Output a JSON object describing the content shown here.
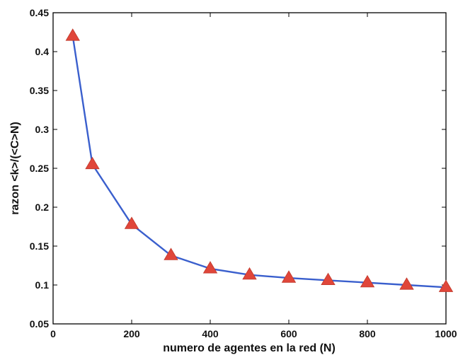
{
  "chart_data": {
    "type": "line",
    "title": "",
    "xlabel": "numero de agentes en la red (N)",
    "ylabel": "razon <k>/(<C>N)",
    "xlim": [
      0,
      1000
    ],
    "ylim": [
      0.05,
      0.45
    ],
    "xticks": [
      0,
      200,
      400,
      600,
      800,
      1000
    ],
    "yticks": [
      0.05,
      0.1,
      0.15,
      0.2,
      0.25,
      0.3,
      0.35,
      0.4,
      0.45
    ],
    "xtick_labels": [
      "0",
      "200",
      "400",
      "600",
      "800",
      "1000"
    ],
    "ytick_labels": [
      "0.05",
      "0.1",
      "0.15",
      "0.2",
      "0.25",
      "0.3",
      "0.35",
      "0.4",
      "0.45"
    ],
    "grid": false,
    "series": [
      {
        "x": [
          50,
          100,
          200,
          300,
          400,
          500,
          600,
          700,
          800,
          900,
          1000
        ],
        "y": [
          0.42,
          0.255,
          0.178,
          0.138,
          0.121,
          0.113,
          0.109,
          0.106,
          0.103,
          0.1,
          0.097
        ],
        "line_color": "#3a5fcd",
        "marker": "triangle",
        "marker_color": "#e0463a"
      }
    ]
  }
}
